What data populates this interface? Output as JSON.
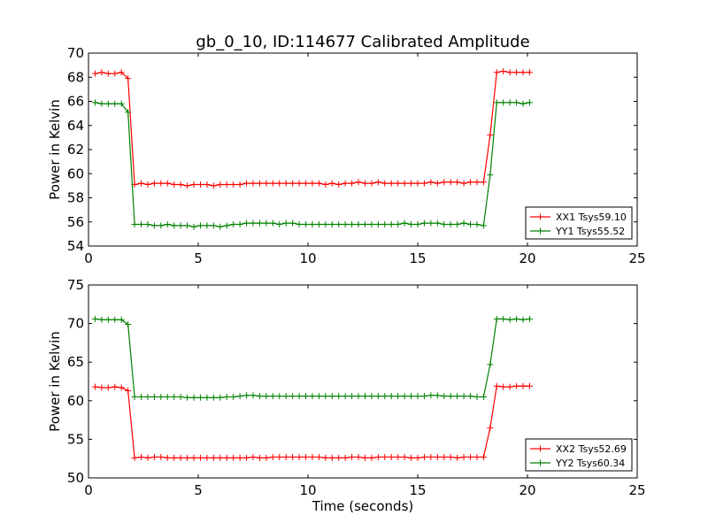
{
  "figure": {
    "title": "gb_0_10, ID:114677 Calibrated Amplitude"
  },
  "chart_data": [
    {
      "type": "line",
      "title": "gb_0_10, ID:114677 Calibrated Amplitude",
      "xlabel": "",
      "ylabel": "Power in Kelvin",
      "xlim": [
        0,
        25
      ],
      "ylim": [
        54,
        70
      ],
      "xticks": [
        0,
        5,
        10,
        15,
        20,
        25
      ],
      "yticks": [
        54,
        56,
        58,
        60,
        62,
        64,
        66,
        68,
        70
      ],
      "grid": false,
      "legend_position": "lower-right",
      "x": [
        0.3,
        0.6,
        0.9,
        1.2,
        1.5,
        1.8,
        2.1,
        2.4,
        2.7,
        3.0,
        3.3,
        3.6,
        3.9,
        4.2,
        4.5,
        4.8,
        5.1,
        5.4,
        5.7,
        6.0,
        6.3,
        6.6,
        6.9,
        7.2,
        7.5,
        7.8,
        8.1,
        8.4,
        8.7,
        9.0,
        9.3,
        9.6,
        9.9,
        10.2,
        10.5,
        10.8,
        11.1,
        11.4,
        11.7,
        12.0,
        12.3,
        12.6,
        12.9,
        13.2,
        13.5,
        13.8,
        14.1,
        14.4,
        14.7,
        15.0,
        15.3,
        15.6,
        15.9,
        16.2,
        16.5,
        16.8,
        17.1,
        17.4,
        17.7,
        18.0,
        18.3,
        18.6,
        18.9,
        19.2,
        19.5,
        19.8,
        20.1
      ],
      "series": [
        {
          "name": "XX1 Tsys59.10",
          "color": "#ff0000",
          "values": [
            68.3,
            68.4,
            68.3,
            68.3,
            68.4,
            67.9,
            59.1,
            59.2,
            59.1,
            59.2,
            59.2,
            59.2,
            59.1,
            59.1,
            59.0,
            59.1,
            59.1,
            59.1,
            59.0,
            59.1,
            59.1,
            59.1,
            59.1,
            59.2,
            59.2,
            59.2,
            59.2,
            59.2,
            59.2,
            59.2,
            59.2,
            59.2,
            59.2,
            59.2,
            59.2,
            59.1,
            59.2,
            59.1,
            59.2,
            59.2,
            59.3,
            59.2,
            59.2,
            59.3,
            59.2,
            59.2,
            59.2,
            59.2,
            59.2,
            59.2,
            59.2,
            59.3,
            59.2,
            59.3,
            59.3,
            59.3,
            59.2,
            59.3,
            59.3,
            59.3,
            63.2,
            68.4,
            68.5,
            68.4,
            68.4,
            68.4,
            68.4
          ]
        },
        {
          "name": "YY1 Tsys55.52",
          "color": "#008000",
          "values": [
            65.9,
            65.8,
            65.8,
            65.8,
            65.8,
            65.1,
            55.8,
            55.8,
            55.8,
            55.7,
            55.7,
            55.8,
            55.7,
            55.7,
            55.7,
            55.6,
            55.7,
            55.7,
            55.7,
            55.6,
            55.7,
            55.8,
            55.8,
            55.9,
            55.9,
            55.9,
            55.9,
            55.9,
            55.8,
            55.9,
            55.9,
            55.8,
            55.8,
            55.8,
            55.8,
            55.8,
            55.8,
            55.8,
            55.8,
            55.8,
            55.8,
            55.8,
            55.8,
            55.8,
            55.8,
            55.8,
            55.8,
            55.9,
            55.8,
            55.8,
            55.9,
            55.9,
            55.9,
            55.8,
            55.8,
            55.8,
            55.9,
            55.8,
            55.8,
            55.7,
            59.9,
            65.9,
            65.9,
            65.9,
            65.9,
            65.8,
            65.9
          ]
        }
      ]
    },
    {
      "type": "line",
      "title": "",
      "xlabel": "Time (seconds)",
      "ylabel": "Power in Kelvin",
      "xlim": [
        0,
        25
      ],
      "ylim": [
        50,
        75
      ],
      "xticks": [
        0,
        5,
        10,
        15,
        20,
        25
      ],
      "yticks": [
        50,
        55,
        60,
        65,
        70,
        75
      ],
      "grid": false,
      "legend_position": "lower-right",
      "x": [
        0.3,
        0.6,
        0.9,
        1.2,
        1.5,
        1.8,
        2.1,
        2.4,
        2.7,
        3.0,
        3.3,
        3.6,
        3.9,
        4.2,
        4.5,
        4.8,
        5.1,
        5.4,
        5.7,
        6.0,
        6.3,
        6.6,
        6.9,
        7.2,
        7.5,
        7.8,
        8.1,
        8.4,
        8.7,
        9.0,
        9.3,
        9.6,
        9.9,
        10.2,
        10.5,
        10.8,
        11.1,
        11.4,
        11.7,
        12.0,
        12.3,
        12.6,
        12.9,
        13.2,
        13.5,
        13.8,
        14.1,
        14.4,
        14.7,
        15.0,
        15.3,
        15.6,
        15.9,
        16.2,
        16.5,
        16.8,
        17.1,
        17.4,
        17.7,
        18.0,
        18.3,
        18.6,
        18.9,
        19.2,
        19.5,
        19.8,
        20.1
      ],
      "series": [
        {
          "name": "XX2 Tsys52.69",
          "color": "#ff0000",
          "values": [
            61.8,
            61.7,
            61.7,
            61.8,
            61.7,
            61.3,
            52.6,
            52.7,
            52.6,
            52.7,
            52.7,
            52.6,
            52.6,
            52.6,
            52.6,
            52.6,
            52.6,
            52.6,
            52.6,
            52.6,
            52.6,
            52.6,
            52.6,
            52.6,
            52.7,
            52.6,
            52.6,
            52.7,
            52.7,
            52.7,
            52.7,
            52.7,
            52.7,
            52.7,
            52.7,
            52.6,
            52.6,
            52.6,
            52.6,
            52.7,
            52.7,
            52.6,
            52.6,
            52.7,
            52.7,
            52.7,
            52.7,
            52.7,
            52.6,
            52.6,
            52.7,
            52.7,
            52.7,
            52.7,
            52.7,
            52.6,
            52.7,
            52.7,
            52.7,
            52.7,
            56.5,
            61.9,
            61.8,
            61.8,
            61.9,
            61.9,
            61.9
          ]
        },
        {
          "name": "YY2 Tsys60.34",
          "color": "#008000",
          "values": [
            70.6,
            70.5,
            70.5,
            70.5,
            70.5,
            69.9,
            60.5,
            60.5,
            60.5,
            60.5,
            60.5,
            60.5,
            60.5,
            60.5,
            60.4,
            60.4,
            60.4,
            60.4,
            60.4,
            60.4,
            60.5,
            60.5,
            60.6,
            60.7,
            60.7,
            60.6,
            60.6,
            60.6,
            60.6,
            60.6,
            60.6,
            60.6,
            60.6,
            60.6,
            60.6,
            60.6,
            60.6,
            60.6,
            60.6,
            60.6,
            60.6,
            60.6,
            60.6,
            60.6,
            60.6,
            60.6,
            60.6,
            60.6,
            60.6,
            60.6,
            60.6,
            60.7,
            60.7,
            60.6,
            60.6,
            60.6,
            60.6,
            60.6,
            60.5,
            60.5,
            64.7,
            70.6,
            70.6,
            70.5,
            70.6,
            70.5,
            70.6
          ]
        }
      ]
    }
  ]
}
